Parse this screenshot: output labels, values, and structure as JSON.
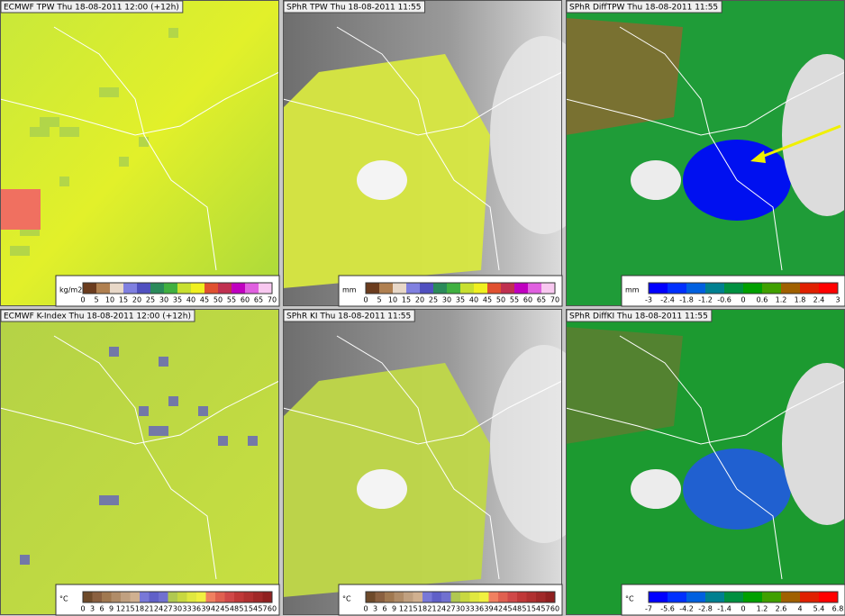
{
  "panels": [
    {
      "title": "ECMWF TPW Thu 18-08-2011 12:00 (+12h)",
      "colorbar": {
        "unit": "kg/m2",
        "labels": [
          "0",
          "5",
          "10",
          "15",
          "20",
          "25",
          "30",
          "35",
          "40",
          "45",
          "50",
          "55",
          "60",
          "65",
          "70"
        ]
      }
    },
    {
      "title": "SPhR TPW Thu 18-08-2011 11:55",
      "colorbar": {
        "unit": "mm",
        "labels": [
          "0",
          "5",
          "10",
          "15",
          "20",
          "25",
          "30",
          "35",
          "40",
          "45",
          "50",
          "55",
          "60",
          "65",
          "70"
        ]
      }
    },
    {
      "title": "SPhR DiffTPW Thu 18-08-2011 11:55",
      "colorbar": {
        "unit": "mm",
        "labels": [
          "-3",
          "-2.4",
          "-1.8",
          "-1.2",
          "-0.6",
          "0",
          "0.6",
          "1.2",
          "1.8",
          "2.4",
          "3"
        ]
      }
    },
    {
      "title": "ECMWF K-Index Thu 18-08-2011 12:00 (+12h)",
      "colorbar": {
        "unit": "°C",
        "labels": [
          "0",
          "3",
          "6",
          "9",
          "12",
          "15",
          "18",
          "21",
          "24",
          "27",
          "30",
          "33",
          "36",
          "39",
          "42",
          "45",
          "48",
          "51",
          "54",
          "57",
          "60"
        ]
      }
    },
    {
      "title": "SPhR KI Thu 18-08-2011 11:55",
      "colorbar": {
        "unit": "°C",
        "labels": [
          "0",
          "3",
          "6",
          "9",
          "12",
          "15",
          "18",
          "21",
          "24",
          "27",
          "30",
          "33",
          "36",
          "39",
          "42",
          "45",
          "48",
          "51",
          "54",
          "57",
          "60"
        ]
      }
    },
    {
      "title": "SPhR DiffKI Thu 18-08-2011 11:55",
      "colorbar": {
        "unit": "°C",
        "labels": [
          "-7",
          "-5.6",
          "-4.2",
          "-2.8",
          "-1.4",
          "0",
          "1.2",
          "2.6",
          "4",
          "5.4",
          "6.8"
        ]
      }
    }
  ]
}
